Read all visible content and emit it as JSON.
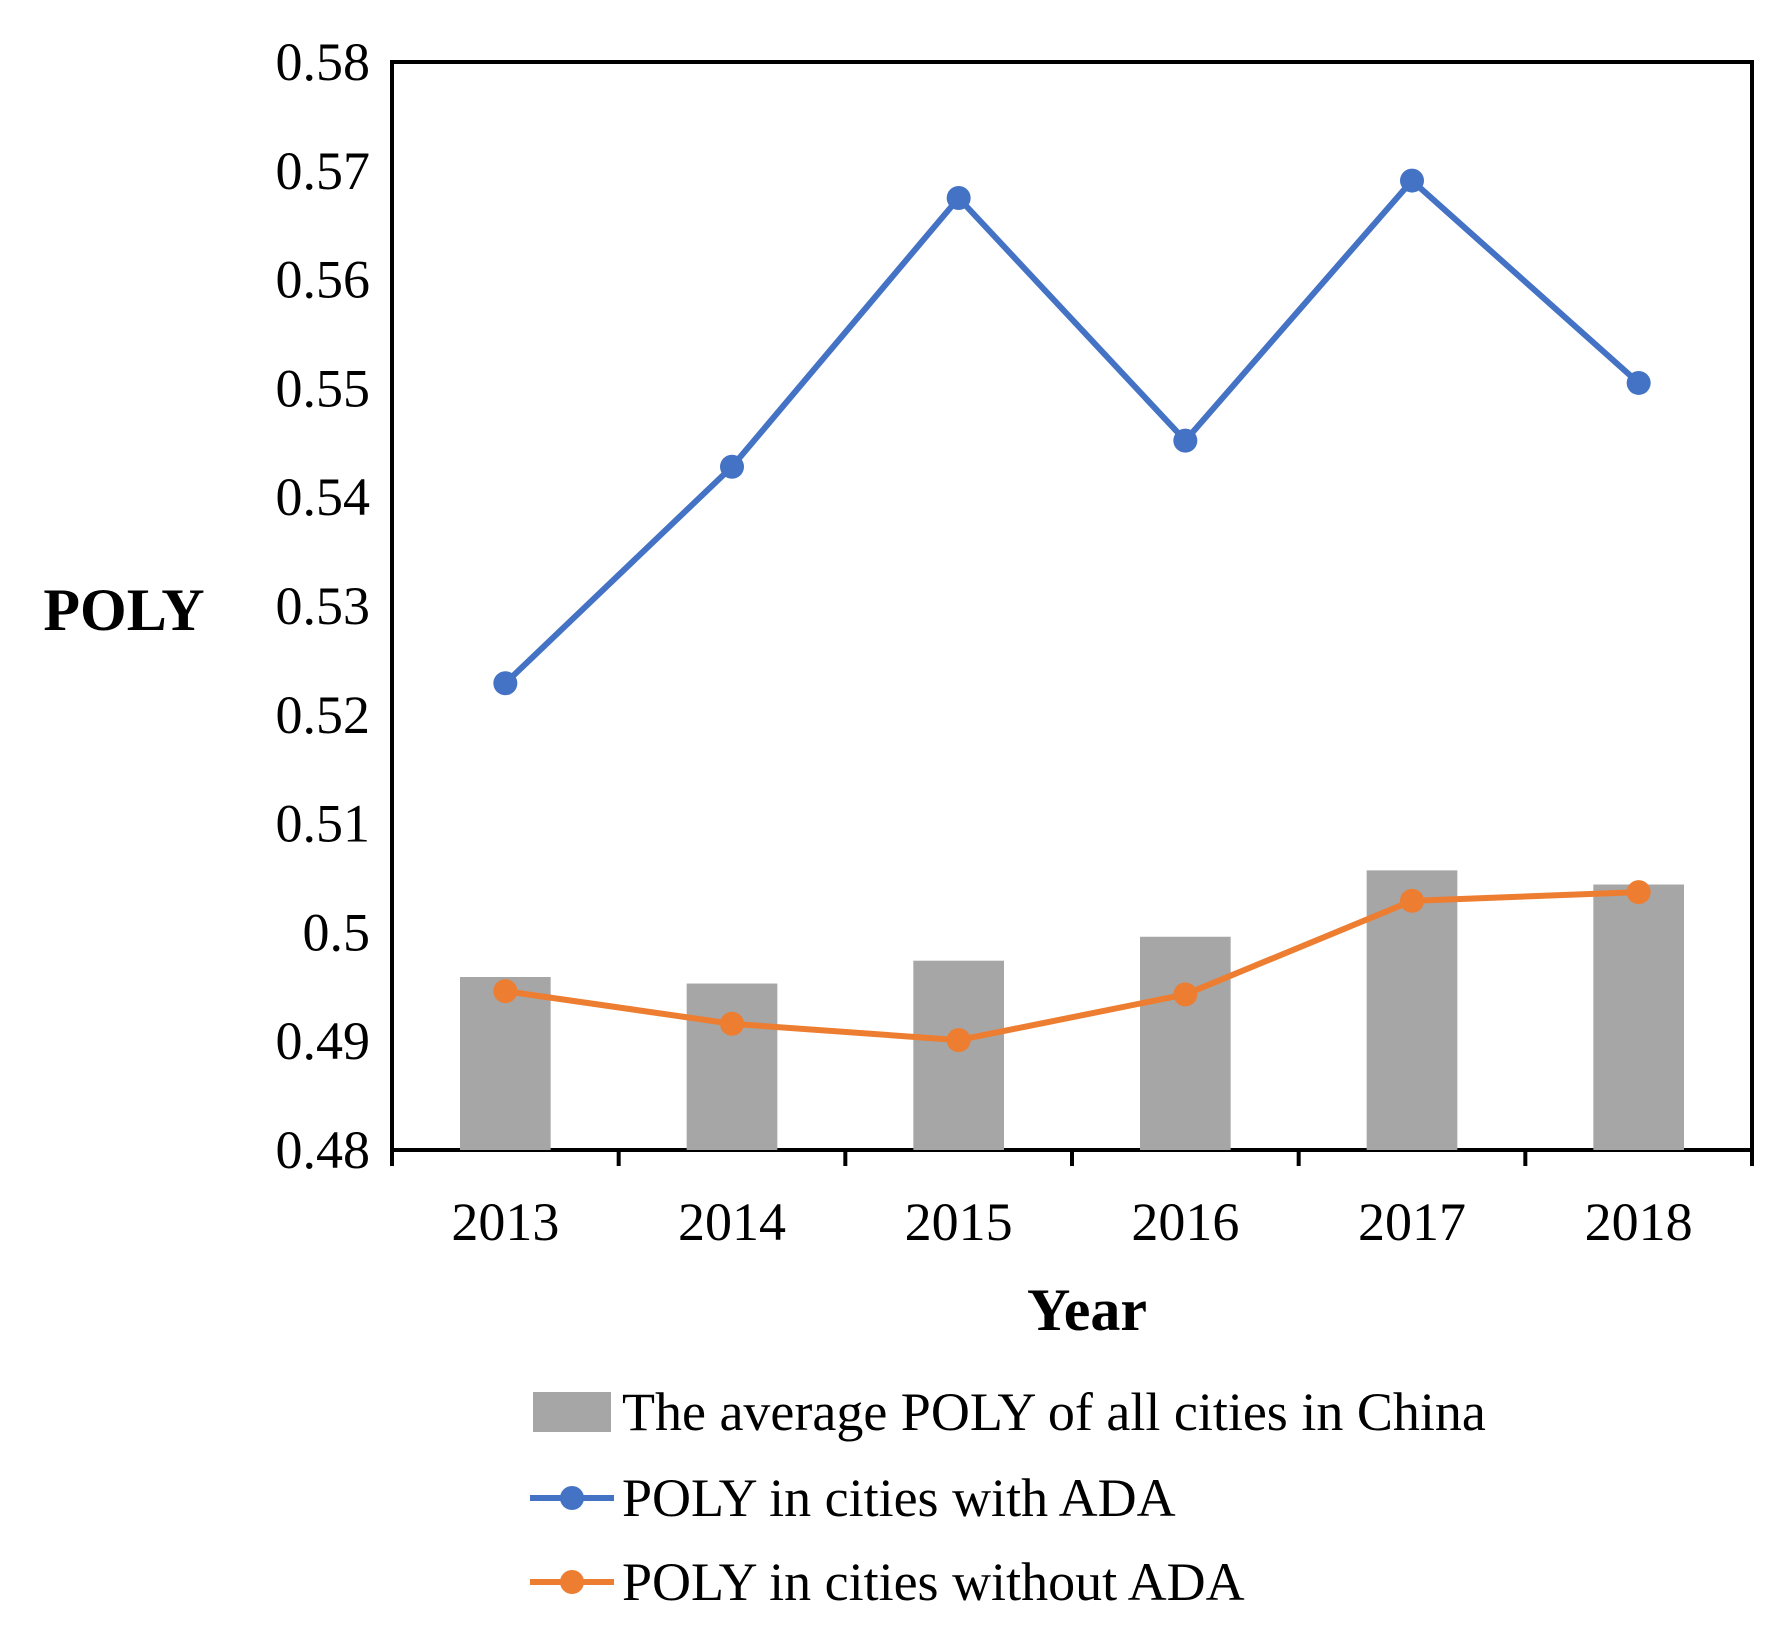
{
  "chart_data": {
    "type": "bar",
    "xlabel": "Year",
    "ylabel": "POLY",
    "ylim": [
      0.48,
      0.58
    ],
    "yticks": [
      "0.48",
      "0.49",
      "0.5",
      "0.51",
      "0.52",
      "0.53",
      "0.54",
      "0.55",
      "0.56",
      "0.57",
      "0.58"
    ],
    "categories": [
      "2013",
      "2014",
      "2015",
      "2016",
      "2017",
      "2018"
    ],
    "series": [
      {
        "name": "The average POLY of all cities in China",
        "type": "bar",
        "color": "#a6a6a6",
        "values": [
          0.4959,
          0.4953,
          0.4974,
          0.4996,
          0.5057,
          0.5044
        ]
      },
      {
        "name": "POLY in cities with ADA",
        "type": "line",
        "color": "#4472c4",
        "values": [
          0.5229,
          0.5428,
          0.5675,
          0.5452,
          0.5691,
          0.5505
        ]
      },
      {
        "name": "POLY in cities without ADA",
        "type": "line",
        "color": "#ed7d31",
        "values": [
          0.4946,
          0.4916,
          0.4901,
          0.4943,
          0.5029,
          0.5037
        ]
      }
    ],
    "grid": false,
    "legend_position": "bottom"
  }
}
